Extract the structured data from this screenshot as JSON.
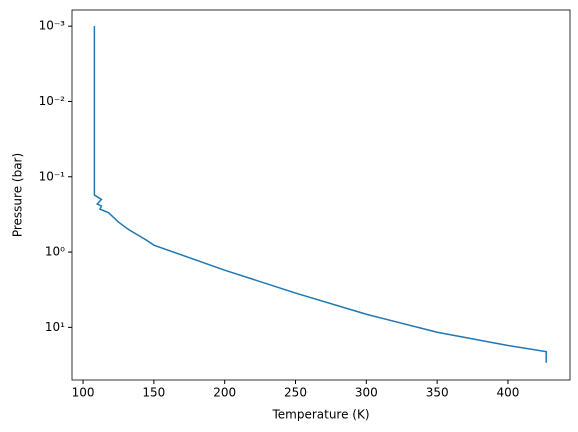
{
  "chart_data": {
    "type": "line",
    "x_label": "Temperature (K)",
    "y_label": "Pressure (bar)",
    "y_scale": "log",
    "y_inverted": true,
    "color": "#1f77b4",
    "x": [
      108,
      108,
      108,
      113,
      110,
      113,
      112,
      118,
      125,
      132,
      145,
      150,
      200,
      250,
      300,
      350,
      400,
      427,
      427
    ],
    "values": [
      0.001,
      0.01,
      0.175,
      0.2,
      0.23,
      0.245,
      0.27,
      0.3,
      0.4,
      0.5,
      0.7,
      0.81,
      1.74,
      3.5,
      6.7,
      11.6,
      17.4,
      21,
      29.5
    ],
    "xlim": [
      92.2,
      443.8
    ],
    "xticks": [
      100,
      150,
      200,
      250,
      300,
      350,
      400
    ],
    "ylim": [
      50,
      0.00061
    ],
    "yticks": [
      {
        "value": 0.001,
        "label": "10⁻³"
      },
      {
        "value": 0.01,
        "label": "10⁻²"
      },
      {
        "value": 0.1,
        "label": "10⁻¹"
      },
      {
        "value": 1,
        "label": "10⁰"
      },
      {
        "value": 10,
        "label": "10¹"
      }
    ]
  }
}
